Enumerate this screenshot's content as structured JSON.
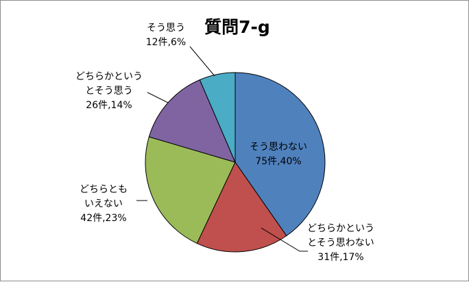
{
  "chart_data": {
    "type": "pie",
    "title": "質問7-g",
    "start_angle_deg": 0,
    "direction": "clockwise",
    "slices": [
      {
        "name": "そう思わない",
        "count": 75,
        "percent": 40,
        "color": "#4f81bd",
        "label_lines": [
          "そう思わない",
          "75件,40%"
        ]
      },
      {
        "name": "どちらかというとそう思わない",
        "count": 31,
        "percent": 17,
        "color": "#c0504d",
        "label_lines": [
          "どちらかという",
          "とそう思わない",
          "31件,17%"
        ]
      },
      {
        "name": "どちらともいえない",
        "count": 42,
        "percent": 23,
        "color": "#9bbb59",
        "label_lines": [
          "どちらとも",
          "いえない",
          "42件,23%"
        ]
      },
      {
        "name": "どちらかというとそう思う",
        "count": 26,
        "percent": 14,
        "color": "#8064a2",
        "label_lines": [
          "どちらかという",
          "とそう思う",
          "26件,14%"
        ]
      },
      {
        "name": "そう思う",
        "count": 12,
        "percent": 6,
        "color": "#4bacc6",
        "label_lines": [
          "そう思う",
          "12件,6%"
        ]
      }
    ]
  }
}
